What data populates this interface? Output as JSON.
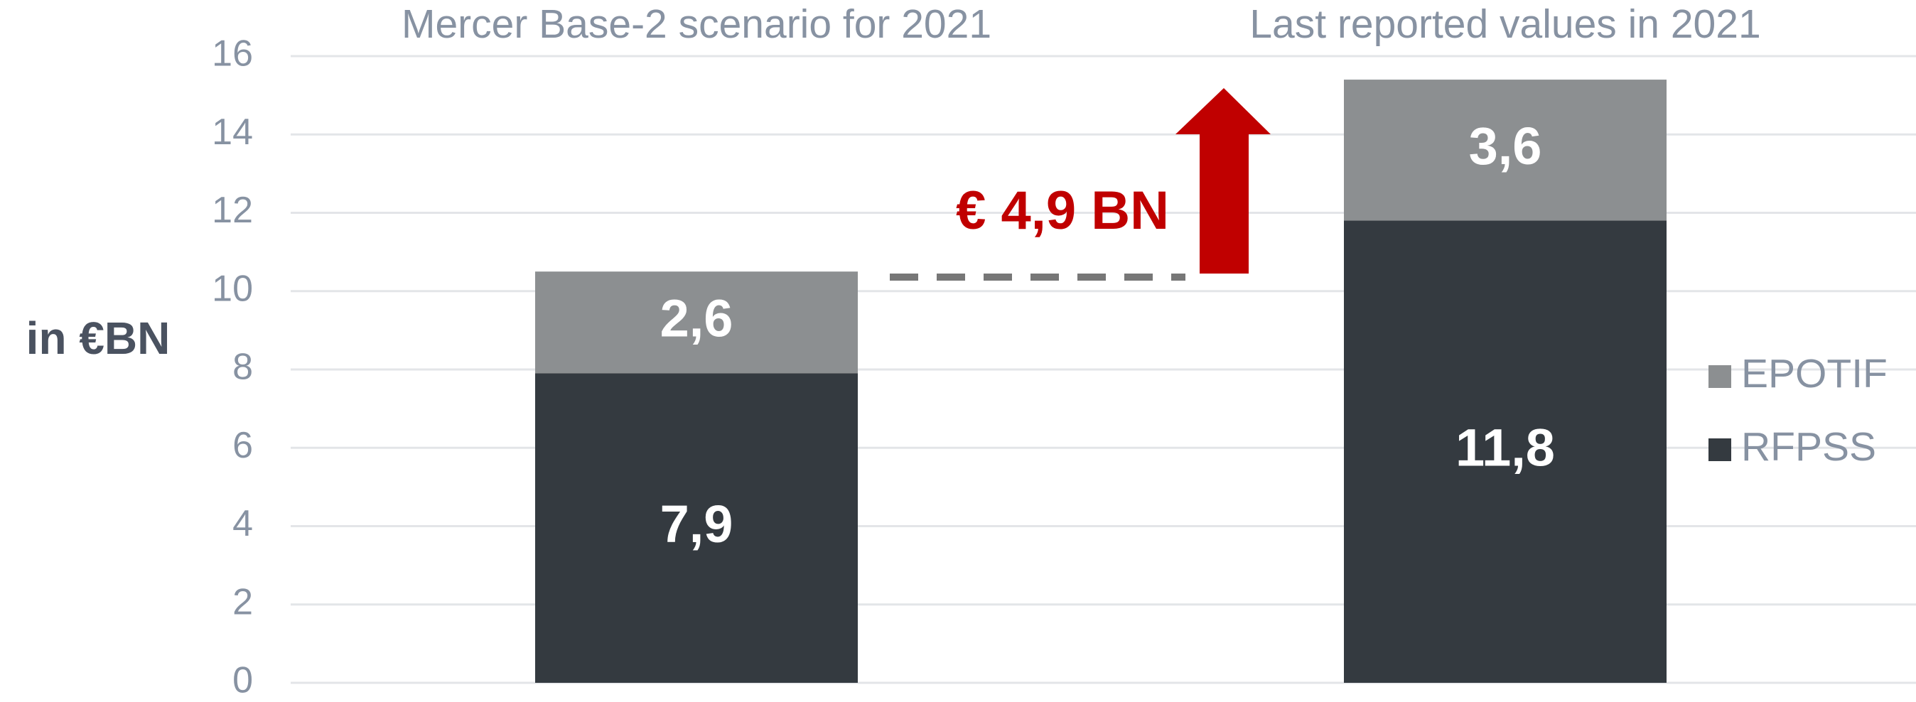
{
  "chart_data": {
    "type": "stacked_bar",
    "categories": [
      "Mercer Base-2 scenario for 2021",
      "Last reported values in 2021"
    ],
    "series": [
      {
        "name": "RFPSS",
        "color": "#343a40",
        "values": [
          7.9,
          11.8
        ],
        "value_labels": [
          "7,9",
          "11,8"
        ]
      },
      {
        "name": "EPOTIF",
        "color": "#8c8f91",
        "values": [
          2.6,
          3.6
        ],
        "value_labels": [
          "2,6",
          "3,6"
        ]
      }
    ],
    "ylabel": "in €BN",
    "annotation": "€ 4,9 BN",
    "ylim": [
      0,
      16
    ],
    "yticks": [
      0,
      2,
      4,
      6,
      8,
      10,
      12,
      14,
      16
    ],
    "grid": true,
    "legend": "right"
  }
}
